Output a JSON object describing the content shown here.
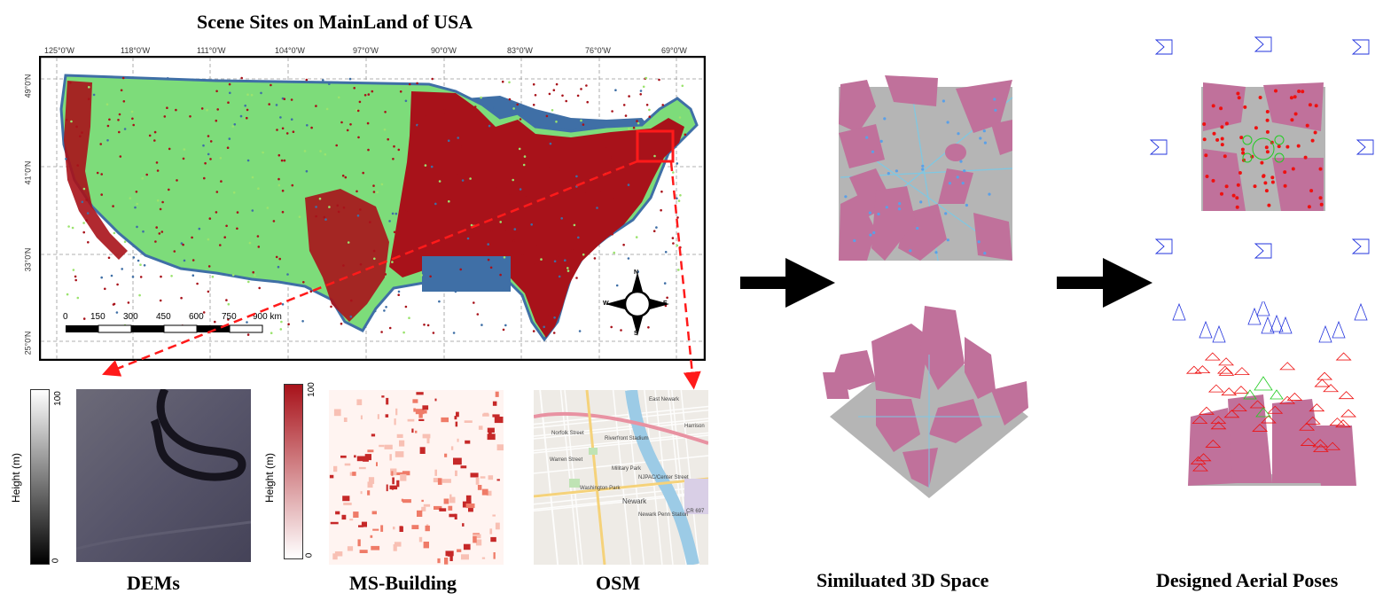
{
  "map": {
    "title": "Scene Sites on MainLand of USA",
    "lon_ticks": [
      "125°0'W",
      "118°0'W",
      "111°0'W",
      "104°0'W",
      "97°0'W",
      "90°0'W",
      "83°0'W",
      "76°0'W",
      "69°0'W"
    ],
    "lat_ticks": [
      "49°0'N",
      "41°0'N",
      "33°0'N",
      "25°0'N"
    ],
    "scale_labels": [
      "0",
      "150",
      "300",
      "450",
      "600",
      "750",
      "900 km"
    ],
    "compass": {
      "n": "N",
      "s": "S",
      "e": "E",
      "w": "W"
    },
    "colors": {
      "land": "#7ddc7a",
      "dense": "#a8121a",
      "water_sites": "#3f6fa6",
      "highlight": "#ff1a1a"
    }
  },
  "panels": {
    "dem": {
      "caption": "DEMs",
      "axis_label": "Height (m)",
      "max": "100",
      "min": "0"
    },
    "building": {
      "caption": "MS-Building",
      "axis_label": "Height (m)",
      "max": "100",
      "min": "0"
    },
    "osm": {
      "caption": "OSM",
      "labels": [
        "Harrison",
        "Newark",
        "Riverfront Stadium",
        "Washington Park",
        "Military Park",
        "Norfolk Street",
        "Warren Street",
        "NJPAC/Center Street",
        "Newark Penn Station",
        "East Newark",
        "CR 697"
      ]
    }
  },
  "space": {
    "caption": "Similuated 3D Space"
  },
  "poses": {
    "caption": "Designed Aerial Poses"
  },
  "colors": {
    "building": "#c0719b",
    "ground": "#b5b5b5",
    "road": "#7ec8e3",
    "camera_blue": "#2233dd",
    "camera_red": "#ee1111",
    "camera_green": "#22cc22"
  }
}
